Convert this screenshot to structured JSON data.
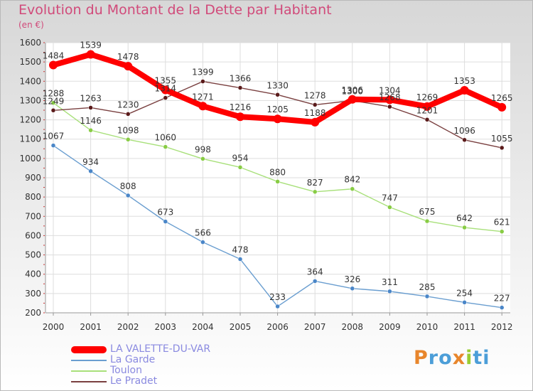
{
  "title": "Evolution du Montant de la Dette par Habitant",
  "unit_label": "(en €)",
  "logo": {
    "text": "Proxiti",
    "colors": [
      "#e8862c",
      "#4c9ed8",
      "#4c9ed8",
      "#e8862c",
      "#9acd32",
      "#4c9ed8",
      "#4c9ed8"
    ]
  },
  "chart_data": {
    "type": "line",
    "title": "Evolution du Montant de la Dette par Habitant",
    "ylabel": "(en €)",
    "x": [
      "2000",
      "2001",
      "2002",
      "2003",
      "2004",
      "2005",
      "2006",
      "2007",
      "2008",
      "2009",
      "2010",
      "2011",
      "2012"
    ],
    "ylim": [
      200,
      1600
    ],
    "yticks": [
      200,
      300,
      400,
      500,
      600,
      700,
      800,
      900,
      1000,
      1100,
      1200,
      1300,
      1400,
      1500,
      1600
    ],
    "grid": true,
    "legend_position": "bottom-left",
    "series": [
      {
        "name": "LA VALETTE-DU-VAR",
        "color": "#ff0000",
        "emphasis": true,
        "values": [
          1484,
          1539,
          1478,
          1355,
          1271,
          1216,
          1205,
          1188,
          1306,
          1304,
          1269,
          1353,
          1265
        ]
      },
      {
        "name": "La Garde",
        "color": "#6a9ed0",
        "point_color": "#4a86c8",
        "values": [
          1067,
          934,
          808,
          673,
          566,
          478,
          233,
          364,
          326,
          311,
          285,
          254,
          227
        ]
      },
      {
        "name": "Toulon",
        "color": "#a8e07a",
        "point_color": "#88cc44",
        "values": [
          1288,
          1146,
          1098,
          1060,
          998,
          954,
          880,
          827,
          842,
          747,
          675,
          642,
          621
        ]
      },
      {
        "name": "Le Pradet",
        "color": "#7a4040",
        "point_color": "#5a1a1a",
        "values": [
          1249,
          1263,
          1230,
          1314,
          1399,
          1366,
          1330,
          1278,
          1300,
          1268,
          1201,
          1096,
          1055
        ]
      }
    ]
  }
}
